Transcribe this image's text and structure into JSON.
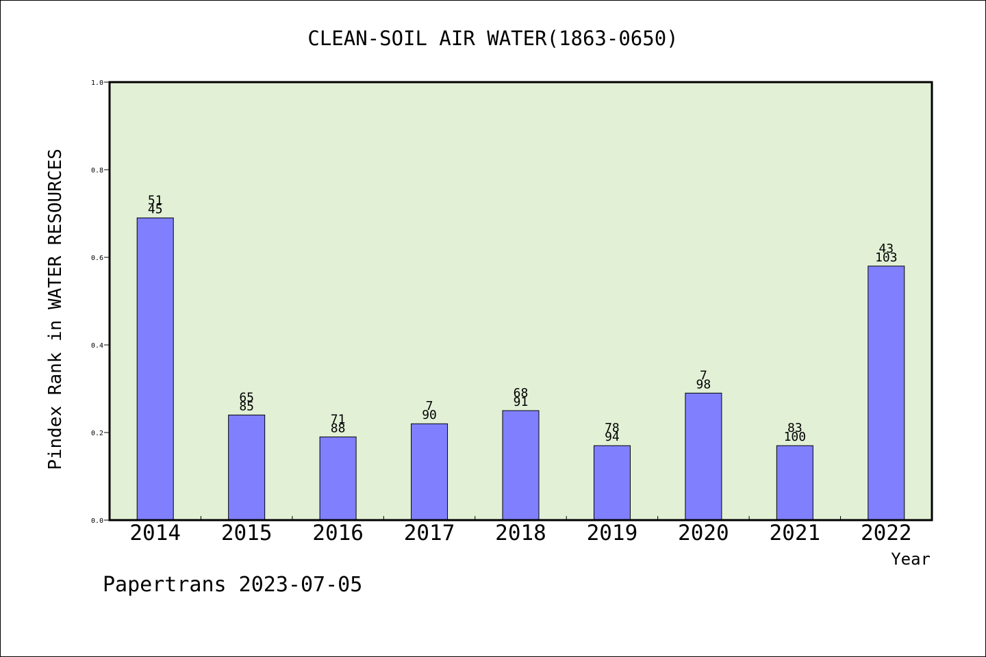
{
  "chart_data": {
    "type": "bar",
    "title": "CLEAN-SOIL AIR WATER(1863-0650)",
    "xlabel": "Year",
    "ylabel": "Pindex Rank in WATER RESOURCES",
    "ylim": [
      0,
      1.0
    ],
    "yticks": [
      "0.0",
      "0.2",
      "0.4",
      "0.6",
      "0.8",
      "1.0"
    ],
    "grid": false,
    "categories": [
      "2014",
      "2015",
      "2016",
      "2017",
      "2018",
      "2019",
      "2020",
      "2021",
      "2022"
    ],
    "values": [
      0.69,
      0.24,
      0.19,
      0.22,
      0.25,
      0.17,
      0.29,
      0.17,
      0.58
    ],
    "labels_top": [
      "51",
      "65",
      "71",
      "7",
      "68",
      "78",
      "7",
      "83",
      "43"
    ],
    "labels_bottom": [
      "45",
      "85",
      "88",
      "90",
      "91",
      "94",
      "98",
      "100",
      "103"
    ],
    "colors": {
      "bar": "#8080ff",
      "plot_background": "#e2f0d6",
      "axis": "#000000"
    }
  },
  "footer": {
    "text": "Papertrans 2023-07-05"
  }
}
